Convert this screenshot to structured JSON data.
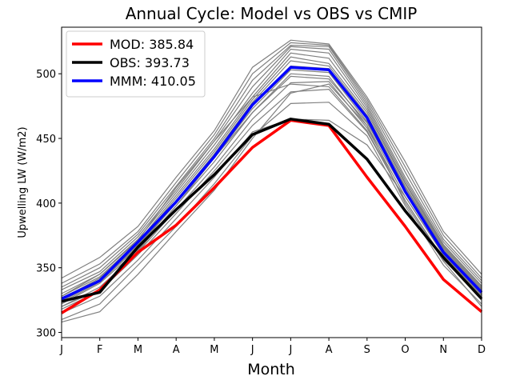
{
  "chart_data": {
    "type": "line",
    "title": "Annual Cycle: Model vs OBS vs CMIP",
    "xlabel": "Month",
    "ylabel": "Upwelling LW (W/m2)",
    "categories": [
      "J",
      "F",
      "M",
      "A",
      "M",
      "J",
      "J",
      "A",
      "S",
      "O",
      "N",
      "D"
    ],
    "ylim": [
      296,
      536
    ],
    "yticks": [
      300,
      350,
      400,
      450,
      500
    ],
    "grid": false,
    "legend_position": "top-left",
    "series": [
      {
        "name": "MOD",
        "label": "MOD: 385.84",
        "color": "#ff0000",
        "values": [
          315,
          333,
          362,
          383,
          412,
          443,
          464,
          460,
          420,
          382,
          341,
          316
        ]
      },
      {
        "name": "OBS",
        "label": "OBS: 393.73",
        "color": "#000000",
        "values": [
          324,
          331,
          366,
          395,
          422,
          453,
          465,
          461,
          434,
          394,
          358,
          326
        ]
      },
      {
        "name": "MMM",
        "label": "MMM: 410.05",
        "color": "#0000ff",
        "values": [
          326,
          340,
          370,
          401,
          436,
          476,
          505,
          503,
          466,
          409,
          362,
          331
        ]
      }
    ],
    "ensemble": {
      "color": "#808080",
      "members": [
        [
          308,
          316,
          345,
          378,
          410,
          450,
          485,
          492,
          460,
          400,
          355,
          320
        ],
        [
          310,
          322,
          352,
          382,
          415,
          452,
          477,
          478,
          452,
          398,
          352,
          322
        ],
        [
          315,
          328,
          356,
          388,
          420,
          455,
          465,
          464,
          445,
          405,
          360,
          328
        ],
        [
          318,
          332,
          360,
          392,
          425,
          460,
          486,
          488,
          455,
          402,
          357,
          325
        ],
        [
          320,
          335,
          362,
          395,
          428,
          465,
          493,
          494,
          458,
          405,
          360,
          328
        ],
        [
          322,
          338,
          364,
          398,
          432,
          470,
          500,
          498,
          460,
          408,
          362,
          330
        ],
        [
          323,
          339,
          366,
          400,
          435,
          473,
          503,
          501,
          463,
          410,
          363,
          331
        ],
        [
          324,
          340,
          367,
          401,
          437,
          476,
          506,
          504,
          465,
          412,
          364,
          332
        ],
        [
          325,
          341,
          368,
          402,
          438,
          478,
          510,
          506,
          468,
          413,
          365,
          333
        ],
        [
          326,
          342,
          369,
          404,
          440,
          480,
          513,
          508,
          470,
          415,
          366,
          334
        ],
        [
          328,
          343,
          370,
          406,
          442,
          482,
          516,
          512,
          472,
          416,
          367,
          335
        ],
        [
          330,
          345,
          372,
          408,
          445,
          485,
          519,
          516,
          474,
          418,
          368,
          336
        ],
        [
          333,
          347,
          374,
          410,
          448,
          490,
          521,
          519,
          476,
          420,
          370,
          338
        ],
        [
          335,
          350,
          376,
          413,
          450,
          495,
          522,
          521,
          478,
          424,
          372,
          340
        ],
        [
          338,
          353,
          378,
          416,
          453,
          500,
          524,
          522,
          480,
          428,
          375,
          342
        ],
        [
          342,
          358,
          382,
          420,
          456,
          505,
          526,
          523,
          482,
          432,
          378,
          345
        ],
        [
          328,
          345,
          371,
          412,
          448,
          482,
          492,
          490,
          456,
          402,
          356,
          328
        ],
        [
          320,
          333,
          363,
          398,
          435,
          470,
          498,
          496,
          462,
          410,
          361,
          329
        ]
      ]
    },
    "series_widths": {
      "MOD": 3.5,
      "OBS": 3.5,
      "MMM": 3.5
    }
  }
}
